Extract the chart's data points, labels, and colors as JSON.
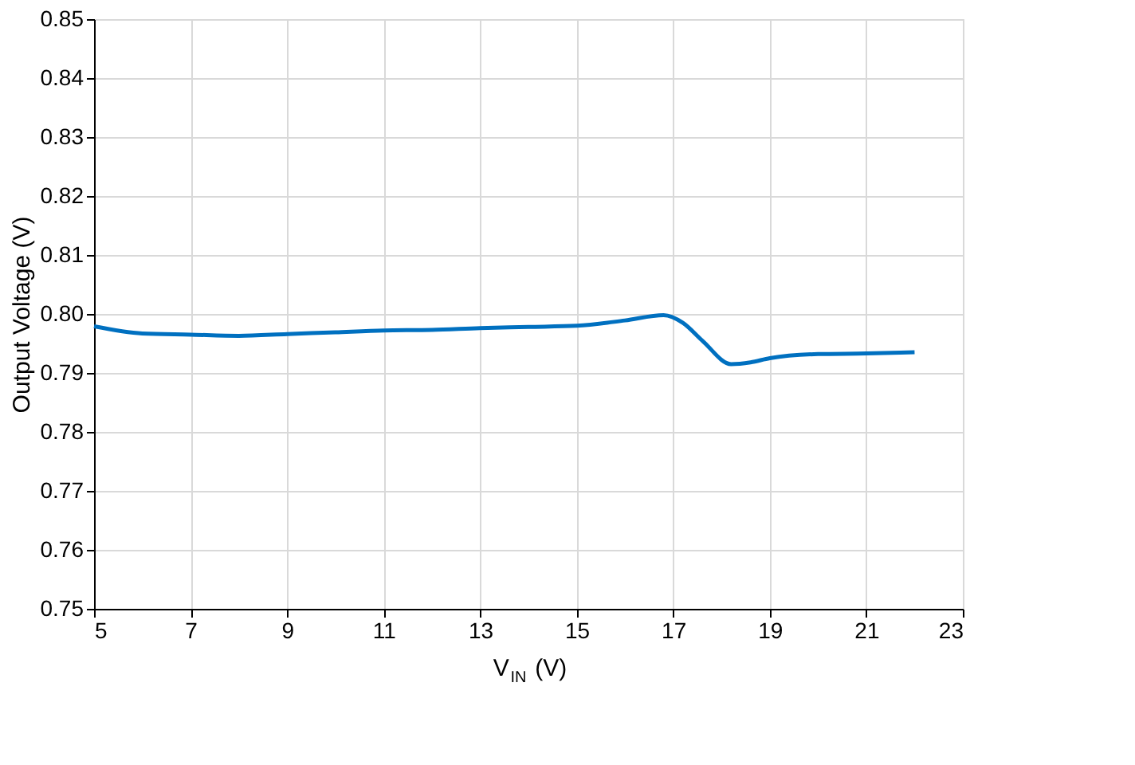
{
  "chart_data": {
    "type": "line",
    "xlabel": "V$_{IN}$ (V)",
    "ylabel": "Output Voltage (V)",
    "x": [
      5,
      6,
      7,
      8,
      9,
      10,
      11,
      12,
      13,
      14,
      15,
      16,
      16.8,
      17.2,
      17.6,
      18.2,
      18.6,
      19,
      20,
      21,
      22
    ],
    "series": [
      {
        "color": "#0070c0",
        "values": [
          0.7979,
          0.7967,
          0.7965,
          0.7963,
          0.7966,
          0.7969,
          0.7972,
          0.7973,
          0.7976,
          0.7978,
          0.798,
          0.7989,
          0.7998,
          0.7985,
          0.7955,
          0.7915,
          0.7918,
          0.7925,
          0.7932,
          0.7933,
          0.7935
        ]
      }
    ],
    "xlim": [
      5,
      23
    ],
    "xticks": [
      5,
      7,
      9,
      11,
      13,
      15,
      17,
      19,
      21,
      23
    ],
    "ylim": [
      0.75,
      0.85
    ],
    "yticks": [
      0.75,
      0.76,
      0.77,
      0.78,
      0.79,
      {
        "value": 0.8,
        "label": "0.80"
      },
      0.81,
      0.82,
      0.83,
      0.84,
      0.85
    ],
    "grid": true,
    "marker": "none",
    "line_style": "solid"
  }
}
